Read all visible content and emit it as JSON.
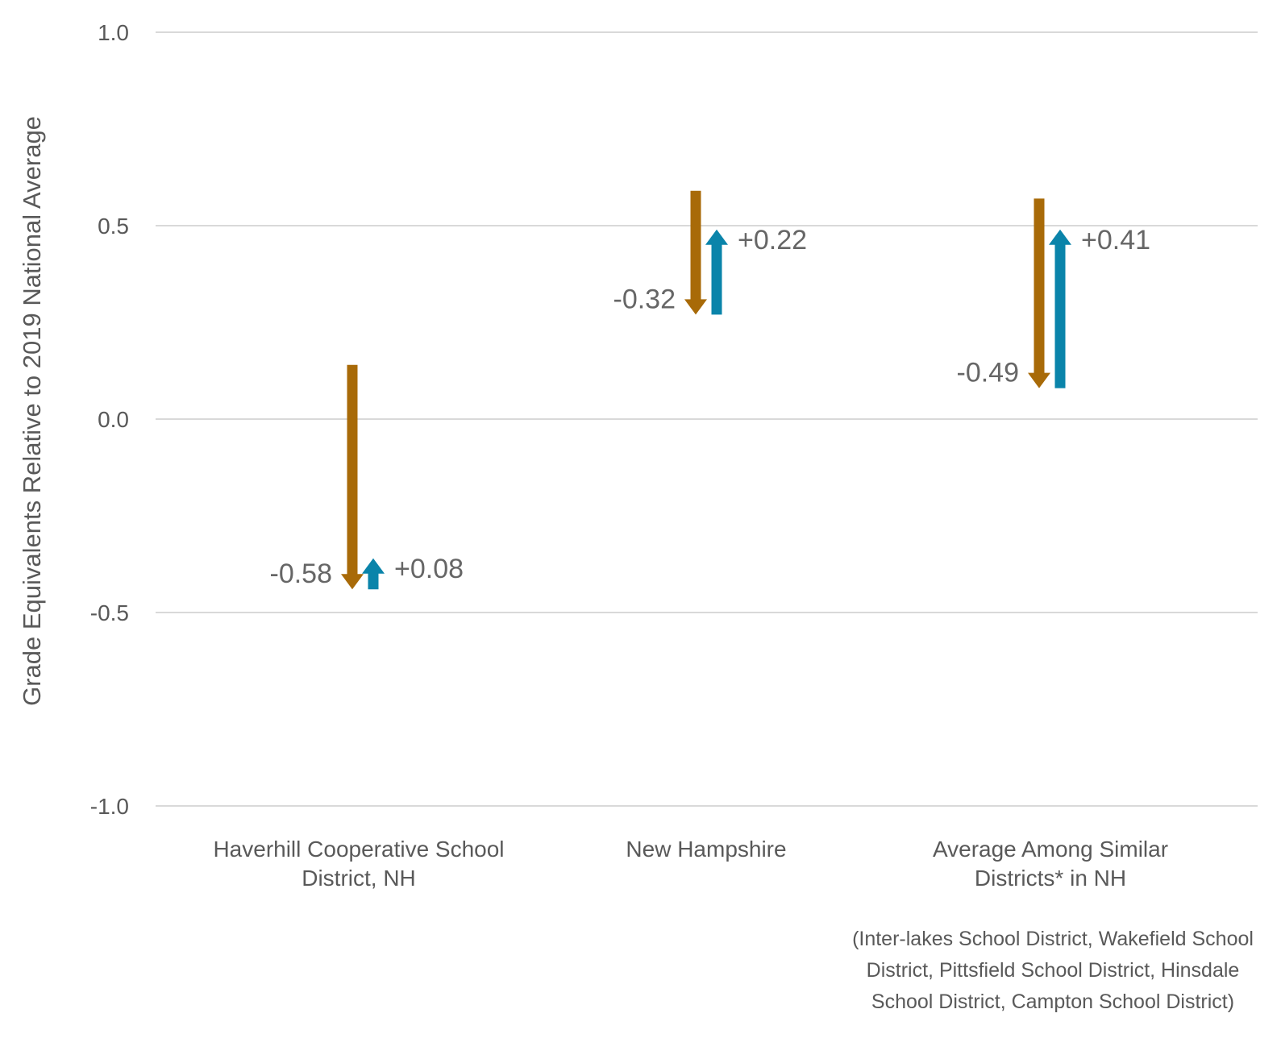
{
  "chart_data": {
    "type": "arrow",
    "ylabel": "Grade Equivalents Relative to 2019 National Average",
    "ylim": [
      -1.0,
      1.0
    ],
    "yticks": [
      "1.0",
      "0.5",
      "0.0",
      "-0.5",
      "-1.0"
    ],
    "ytick_values": [
      1.0,
      0.5,
      0.0,
      -0.5,
      -1.0
    ],
    "grid": true,
    "colors": {
      "decline": "#a86a08",
      "recovery": "#0a84aa"
    },
    "categories": [
      {
        "label": "Haverhill Cooperative School District, NH",
        "decline": {
          "from": 0.14,
          "to": -0.44,
          "label": "-0.58"
        },
        "recovery": {
          "from": -0.44,
          "to": -0.36,
          "label": "+0.08"
        }
      },
      {
        "label": "New Hampshire",
        "decline": {
          "from": 0.59,
          "to": 0.27,
          "label": "-0.32"
        },
        "recovery": {
          "from": 0.27,
          "to": 0.49,
          "label": "+0.22"
        }
      },
      {
        "label": "Average Among Similar Districts* in NH",
        "decline": {
          "from": 0.57,
          "to": 0.08,
          "label": "-0.49"
        },
        "recovery": {
          "from": 0.08,
          "to": 0.49,
          "label": "+0.41"
        }
      }
    ],
    "note": "(Inter-lakes School District, Wakefield School District, Pittsfield School District, Hinsdale School District, Campton School District)"
  }
}
